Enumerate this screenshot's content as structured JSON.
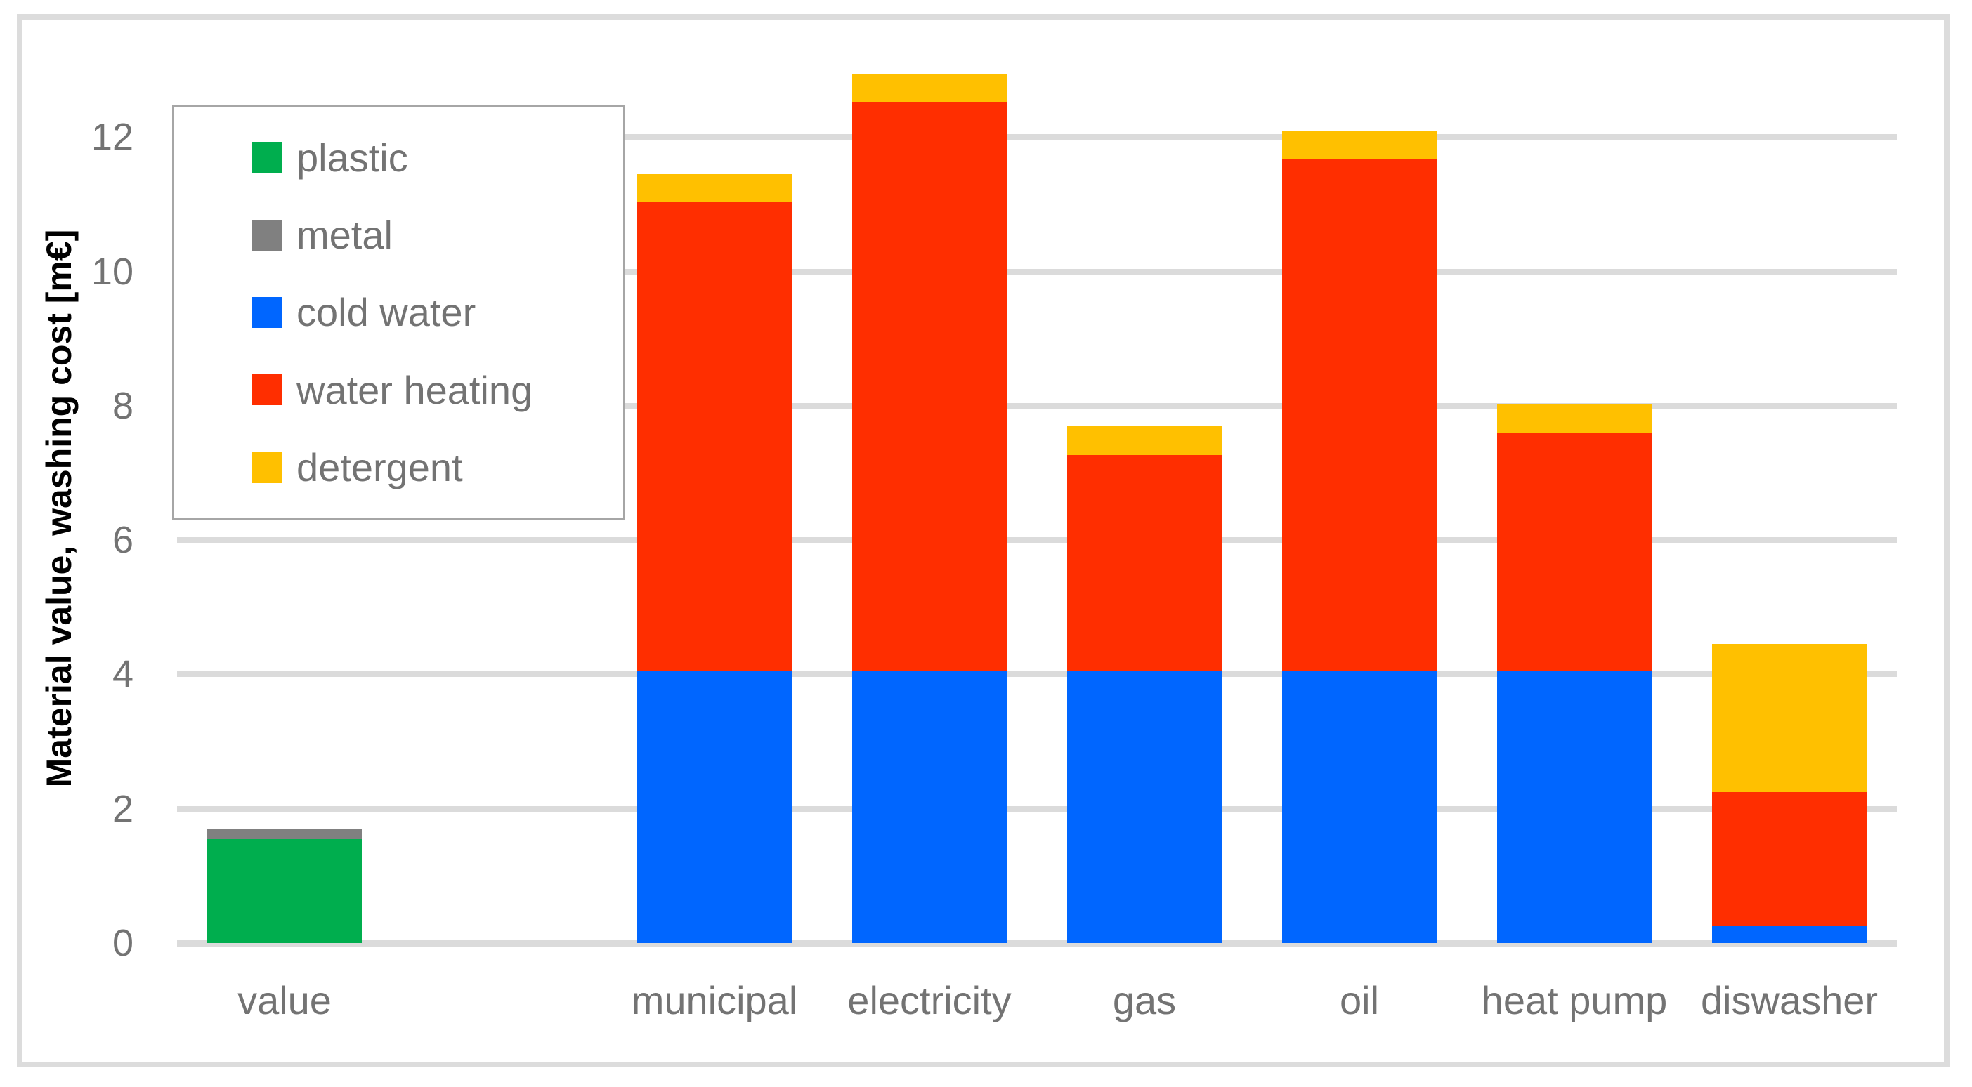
{
  "figure": {
    "background": "#ffffff",
    "border_color": "#dcdcdc"
  },
  "y_axis": {
    "title": "Material value, washing cost [m€]",
    "tick_labels": [
      "0",
      "2",
      "4",
      "6",
      "8",
      "10",
      "12"
    ],
    "text_color": "#737373",
    "title_color": "#000000"
  },
  "x_axis": {
    "labels": [
      "value",
      "municipal",
      "electricity",
      "gas",
      "oil",
      "heat pump",
      "diswasher"
    ],
    "text_color": "#737373"
  },
  "legend": {
    "position": "top-left",
    "border_color": "#a6a6a6",
    "items": [
      {
        "label": "plastic",
        "color": "#00ae4e"
      },
      {
        "label": "metal",
        "color": "#808080"
      },
      {
        "label": "cold water",
        "color": "#0066ff"
      },
      {
        "label": "water heating",
        "color": "#ff2e00"
      },
      {
        "label": "detergent",
        "color": "#ffc000"
      }
    ]
  },
  "chart_data": {
    "type": "bar",
    "stacked": true,
    "title": "",
    "xlabel": "",
    "ylabel": "Material value, washing cost [m€]",
    "categories": [
      "value",
      "",
      "municipal",
      "electricity",
      "gas",
      "oil",
      "heat pump",
      "diswasher"
    ],
    "series": [
      {
        "name": "plastic",
        "color": "#00ae4e",
        "values": [
          1.55,
          0,
          0,
          0,
          0,
          0,
          0,
          0
        ]
      },
      {
        "name": "metal",
        "color": "#808080",
        "values": [
          0.15,
          0,
          0,
          0,
          0,
          0,
          0,
          0
        ]
      },
      {
        "name": "cold water",
        "color": "#0066ff",
        "values": [
          0,
          0,
          4.05,
          4.05,
          4.05,
          4.05,
          4.05,
          0.25
        ]
      },
      {
        "name": "water heating",
        "color": "#ff2e00",
        "values": [
          0,
          0,
          6.98,
          8.47,
          3.22,
          7.62,
          3.55,
          2.0
        ]
      },
      {
        "name": "detergent",
        "color": "#ffc000",
        "values": [
          0,
          0,
          0.42,
          0.42,
          0.42,
          0.42,
          0.42,
          2.2
        ]
      }
    ],
    "totals": [
      1.7,
      0,
      11.45,
      12.94,
      7.69,
      12.09,
      8.02,
      4.45
    ],
    "ylim": [
      0,
      13.1
    ],
    "yticks": [
      0,
      2,
      4,
      6,
      8,
      10,
      12
    ],
    "grid": true,
    "gridline_color": "#dbdbdb",
    "legend_position": "top-left"
  }
}
